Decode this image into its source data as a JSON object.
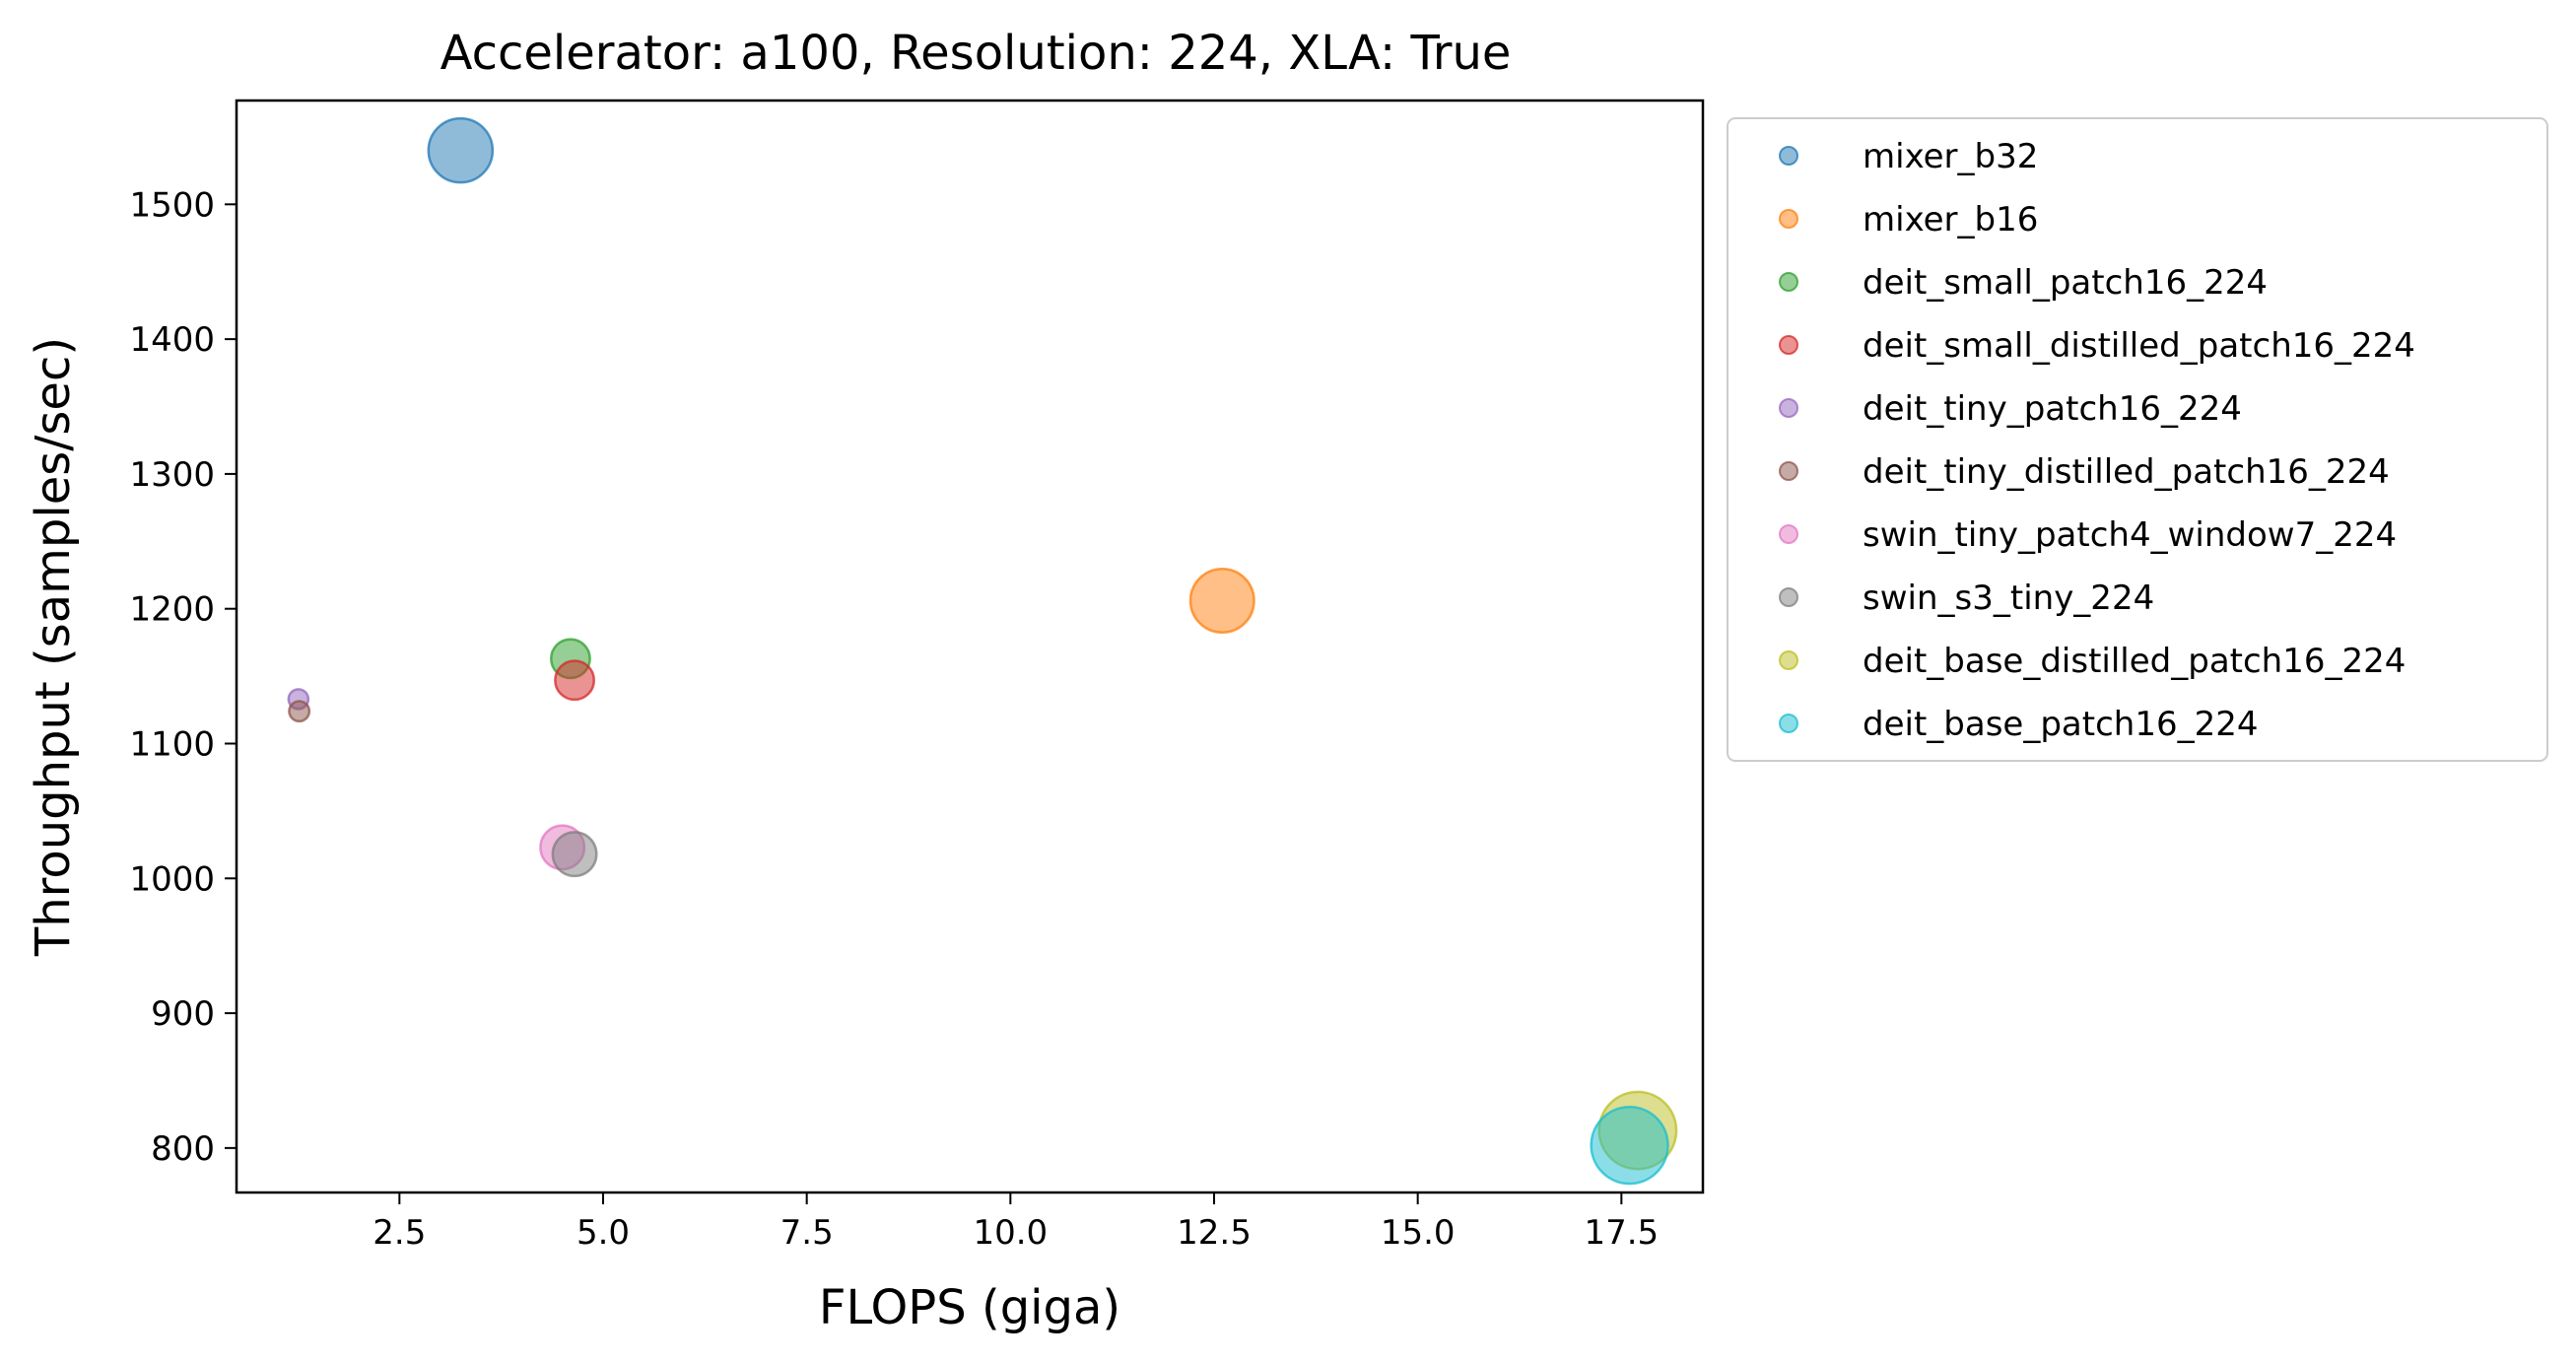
{
  "chart_data": {
    "type": "scatter",
    "title": "Accelerator: a100, Resolution: 224, XLA: True",
    "xlabel": "FLOPS (giga)",
    "ylabel": "Throughput (samples/sec)",
    "xlim": [
      0.5,
      18.5
    ],
    "ylim": [
      767,
      1577
    ],
    "x_ticks": [
      2.5,
      5.0,
      7.5,
      10.0,
      12.5,
      15.0,
      17.5
    ],
    "x_tick_labels": [
      "2.5",
      "5.0",
      "7.5",
      "10.0",
      "12.5",
      "15.0",
      "17.5"
    ],
    "y_ticks": [
      800,
      900,
      1000,
      1100,
      1200,
      1300,
      1400,
      1500
    ],
    "y_tick_labels": [
      "800",
      "900",
      "1000",
      "1100",
      "1200",
      "1300",
      "1400",
      "1500"
    ],
    "grid": false,
    "legend_position": "outside-right",
    "marker_size_note": "marker area scales with model parameter count",
    "series": [
      {
        "name": "mixer_b32",
        "color": "#1f77b4",
        "x": 3.25,
        "y": 1540,
        "params_m": 60
      },
      {
        "name": "mixer_b16",
        "color": "#ff7f0e",
        "x": 12.6,
        "y": 1206,
        "params_m": 59
      },
      {
        "name": "deit_small_patch16_224",
        "color": "#2ca02c",
        "x": 4.6,
        "y": 1163,
        "params_m": 22
      },
      {
        "name": "deit_small_distilled_patch16_224",
        "color": "#d62728",
        "x": 4.65,
        "y": 1147,
        "params_m": 22
      },
      {
        "name": "deit_tiny_patch16_224",
        "color": "#9467bd",
        "x": 1.26,
        "y": 1133,
        "params_m": 5.7
      },
      {
        "name": "deit_tiny_distilled_patch16_224",
        "color": "#8c564b",
        "x": 1.27,
        "y": 1124,
        "params_m": 5.9
      },
      {
        "name": "swin_tiny_patch4_window7_224",
        "color": "#e377c2",
        "x": 4.5,
        "y": 1023,
        "params_m": 28
      },
      {
        "name": "swin_s3_tiny_224",
        "color": "#7f7f7f",
        "x": 4.65,
        "y": 1018,
        "params_m": 28
      },
      {
        "name": "deit_base_distilled_patch16_224",
        "color": "#bcbd22",
        "x": 17.7,
        "y": 813,
        "params_m": 87
      },
      {
        "name": "deit_base_patch16_224",
        "color": "#17becf",
        "x": 17.6,
        "y": 802,
        "params_m": 86
      }
    ]
  }
}
